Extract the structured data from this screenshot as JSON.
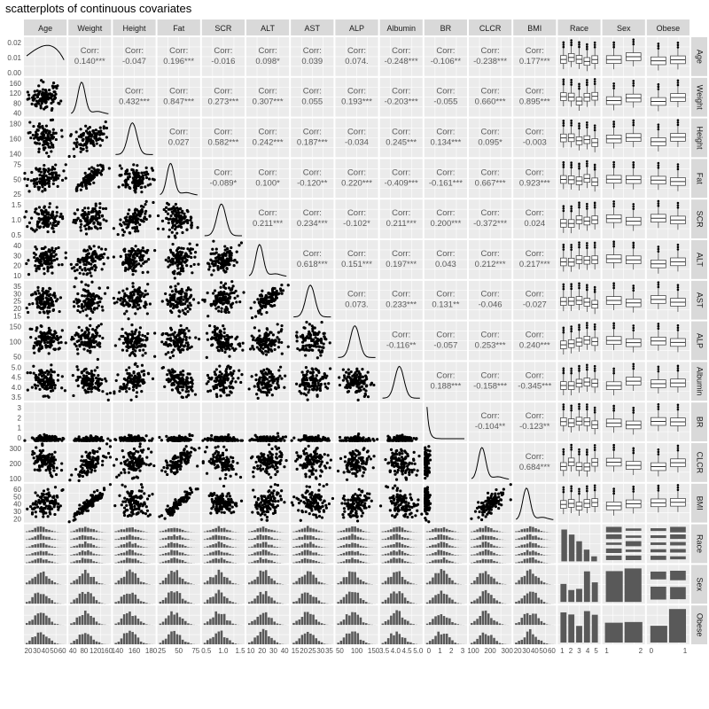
{
  "title": "scatterplots of continuous covariates",
  "chart_data": {
    "type": "scatter",
    "title": "scatterplots of continuous covariates",
    "variables": [
      "Age",
      "Weight",
      "Height",
      "Fat",
      "SCR",
      "ALT",
      "AST",
      "ALP",
      "Albumin",
      "BR",
      "CLCR",
      "BMI",
      "Race",
      "Sex",
      "Obese"
    ],
    "continuous": [
      "Age",
      "Weight",
      "Height",
      "Fat",
      "SCR",
      "ALT",
      "AST",
      "ALP",
      "Albumin",
      "BR",
      "CLCR",
      "BMI"
    ],
    "categorical": {
      "Race": [
        "1",
        "2",
        "3",
        "4",
        "5"
      ],
      "Sex": [
        "1",
        "2"
      ],
      "Obese": [
        "0",
        "1"
      ]
    },
    "corr_label": "Corr:",
    "correlations": [
      {
        "row": "Age",
        "col": "Weight",
        "value": "0.140***"
      },
      {
        "row": "Age",
        "col": "Height",
        "value": "-0.047"
      },
      {
        "row": "Age",
        "col": "Fat",
        "value": "0.196***"
      },
      {
        "row": "Age",
        "col": "SCR",
        "value": "-0.016"
      },
      {
        "row": "Age",
        "col": "ALT",
        "value": "0.098*"
      },
      {
        "row": "Age",
        "col": "AST",
        "value": "0.039"
      },
      {
        "row": "Age",
        "col": "ALP",
        "value": "0.074."
      },
      {
        "row": "Age",
        "col": "Albumin",
        "value": "-0.248***"
      },
      {
        "row": "Age",
        "col": "BR",
        "value": "-0.106**"
      },
      {
        "row": "Age",
        "col": "CLCR",
        "value": "-0.238***"
      },
      {
        "row": "Age",
        "col": "BMI",
        "value": "0.177***"
      },
      {
        "row": "Weight",
        "col": "Height",
        "value": "0.432***"
      },
      {
        "row": "Weight",
        "col": "Fat",
        "value": "0.847***"
      },
      {
        "row": "Weight",
        "col": "SCR",
        "value": "0.273***"
      },
      {
        "row": "Weight",
        "col": "ALT",
        "value": "0.307***"
      },
      {
        "row": "Weight",
        "col": "AST",
        "value": "0.055"
      },
      {
        "row": "Weight",
        "col": "ALP",
        "value": "0.193***"
      },
      {
        "row": "Weight",
        "col": "Albumin",
        "value": "-0.203***"
      },
      {
        "row": "Weight",
        "col": "BR",
        "value": "-0.055"
      },
      {
        "row": "Weight",
        "col": "CLCR",
        "value": "0.660***"
      },
      {
        "row": "Weight",
        "col": "BMI",
        "value": "0.895***"
      },
      {
        "row": "Height",
        "col": "Fat",
        "value": "0.027"
      },
      {
        "row": "Height",
        "col": "SCR",
        "value": "0.582***"
      },
      {
        "row": "Height",
        "col": "ALT",
        "value": "0.242***"
      },
      {
        "row": "Height",
        "col": "AST",
        "value": "0.187***"
      },
      {
        "row": "Height",
        "col": "ALP",
        "value": "-0.034"
      },
      {
        "row": "Height",
        "col": "Albumin",
        "value": "0.245***"
      },
      {
        "row": "Height",
        "col": "BR",
        "value": "0.134***"
      },
      {
        "row": "Height",
        "col": "CLCR",
        "value": "0.095*"
      },
      {
        "row": "Height",
        "col": "BMI",
        "value": "-0.003"
      },
      {
        "row": "Fat",
        "col": "SCR",
        "value": "-0.089*"
      },
      {
        "row": "Fat",
        "col": "ALT",
        "value": "0.100*"
      },
      {
        "row": "Fat",
        "col": "AST",
        "value": "-0.120**"
      },
      {
        "row": "Fat",
        "col": "ALP",
        "value": "0.220***"
      },
      {
        "row": "Fat",
        "col": "Albumin",
        "value": "-0.409***"
      },
      {
        "row": "Fat",
        "col": "BR",
        "value": "-0.161***"
      },
      {
        "row": "Fat",
        "col": "CLCR",
        "value": "0.667***"
      },
      {
        "row": "Fat",
        "col": "BMI",
        "value": "0.923***"
      },
      {
        "row": "SCR",
        "col": "ALT",
        "value": "0.211***"
      },
      {
        "row": "SCR",
        "col": "AST",
        "value": "0.234***"
      },
      {
        "row": "SCR",
        "col": "ALP",
        "value": "-0.102*"
      },
      {
        "row": "SCR",
        "col": "Albumin",
        "value": "0.211***"
      },
      {
        "row": "SCR",
        "col": "BR",
        "value": "0.200***"
      },
      {
        "row": "SCR",
        "col": "CLCR",
        "value": "-0.372***"
      },
      {
        "row": "SCR",
        "col": "BMI",
        "value": "0.024"
      },
      {
        "row": "ALT",
        "col": "AST",
        "value": "0.618***"
      },
      {
        "row": "ALT",
        "col": "ALP",
        "value": "0.151***"
      },
      {
        "row": "ALT",
        "col": "Albumin",
        "value": "0.197***"
      },
      {
        "row": "ALT",
        "col": "BR",
        "value": "0.043"
      },
      {
        "row": "ALT",
        "col": "CLCR",
        "value": "0.212***"
      },
      {
        "row": "ALT",
        "col": "BMI",
        "value": "0.217***"
      },
      {
        "row": "AST",
        "col": "ALP",
        "value": "0.073."
      },
      {
        "row": "AST",
        "col": "Albumin",
        "value": "0.233***"
      },
      {
        "row": "AST",
        "col": "BR",
        "value": "0.131**"
      },
      {
        "row": "AST",
        "col": "CLCR",
        "value": "-0.046"
      },
      {
        "row": "AST",
        "col": "BMI",
        "value": "-0.027"
      },
      {
        "row": "ALP",
        "col": "Albumin",
        "value": "-0.116**"
      },
      {
        "row": "ALP",
        "col": "BR",
        "value": "-0.057"
      },
      {
        "row": "ALP",
        "col": "CLCR",
        "value": "0.253***"
      },
      {
        "row": "ALP",
        "col": "BMI",
        "value": "0.240***"
      },
      {
        "row": "Albumin",
        "col": "BR",
        "value": "0.188***"
      },
      {
        "row": "Albumin",
        "col": "CLCR",
        "value": "-0.158***"
      },
      {
        "row": "Albumin",
        "col": "BMI",
        "value": "-0.345***"
      },
      {
        "row": "BR",
        "col": "CLCR",
        "value": "-0.104**"
      },
      {
        "row": "BR",
        "col": "BMI",
        "value": "-0.123**"
      },
      {
        "row": "CLCR",
        "col": "BMI",
        "value": "0.684***"
      }
    ],
    "y_ticks": {
      "Age": [
        "0.02",
        "0.01",
        "0.00"
      ],
      "Weight": [
        "160",
        "120",
        "80",
        "40"
      ],
      "Height": [
        "180",
        "160",
        "140"
      ],
      "Fat": [
        "75",
        "50",
        "25"
      ],
      "SCR": [
        "1.5",
        "1.0",
        "0.5"
      ],
      "ALT": [
        "40",
        "30",
        "20",
        "10"
      ],
      "AST": [
        "35",
        "30",
        "25",
        "20",
        "15"
      ],
      "ALP": [
        "150",
        "100",
        "50"
      ],
      "Albumin": [
        "5.0",
        "4.5",
        "4.0",
        "3.5"
      ],
      "BR": [
        "3",
        "2",
        "1",
        "0"
      ],
      "CLCR": [
        "300",
        "200",
        "100"
      ],
      "BMI": [
        "60",
        "50",
        "40",
        "30",
        "20"
      ],
      "Race": [],
      "Sex": [],
      "Obese": []
    },
    "x_ticks": {
      "Age": [
        "20",
        "30",
        "40",
        "50",
        "60"
      ],
      "Weight": [
        "40",
        "80",
        "120",
        "160"
      ],
      "Height": [
        "140",
        "160",
        "180"
      ],
      "Fat": [
        "25",
        "50",
        "75"
      ],
      "SCR": [
        "0.5",
        "1.0",
        "1.5"
      ],
      "ALT": [
        "10",
        "20",
        "30",
        "40"
      ],
      "AST": [
        "15",
        "20",
        "25",
        "30",
        "35"
      ],
      "ALP": [
        "50",
        "100",
        "150"
      ],
      "Albumin": [
        "3.5",
        "4.0",
        "4.5",
        "5.0"
      ],
      "BR": [
        "0",
        "1",
        "2",
        "3"
      ],
      "CLCR": [
        "100",
        "200",
        "300"
      ],
      "BMI": [
        "20",
        "30",
        "40",
        "50",
        "60"
      ],
      "Race": [
        "1",
        "2",
        "3",
        "4",
        "5"
      ],
      "Sex": [
        "1",
        "2"
      ],
      "Obese": [
        "0",
        "1"
      ]
    },
    "race_bar_heights": [
      0.95,
      0.8,
      0.6,
      0.35,
      0.15
    ],
    "sex_bar_heights": [
      0.92,
      1.0
    ],
    "obese_bar_heights": [
      0.5,
      1.0
    ],
    "grid": true,
    "legend": "none"
  }
}
